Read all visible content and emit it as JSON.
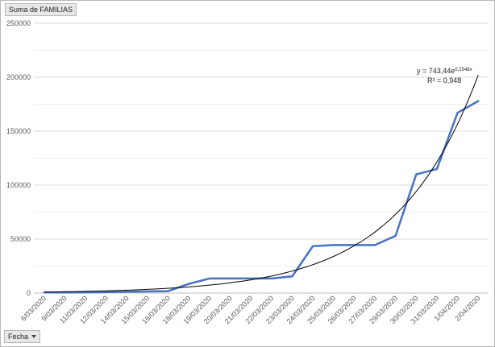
{
  "pivot": {
    "value_field": "Suma de FAMILIAS",
    "axis_field": "Fecha"
  },
  "chart_data": {
    "type": "line",
    "title": "",
    "xlabel": "",
    "ylabel": "",
    "ylim": [
      0,
      250000
    ],
    "y_ticks": [
      "0",
      "50000",
      "100000",
      "150000",
      "200000",
      "250000"
    ],
    "categories": [
      "6/03/2020",
      "9/03/2020",
      "11/03/2020",
      "12/03/2020",
      "14/03/2020",
      "15/03/2020",
      "16/03/2020",
      "18/03/2020",
      "19/03/2020",
      "20/03/2020",
      "21/03/2020",
      "22/03/2020",
      "23/03/2020",
      "24/03/2020",
      "25/03/2020",
      "26/03/2020",
      "27/03/2020",
      "29/03/2020",
      "30/03/2020",
      "31/03/2020",
      "1/04/2020",
      "2/04/2020"
    ],
    "series": [
      {
        "values": [
          500,
          600,
          700,
          900,
          1200,
          1500,
          1800,
          8500,
          13500,
          13500,
          13500,
          13500,
          15500,
          43500,
          44500,
          44500,
          44500,
          53000,
          110000,
          115000,
          167000,
          178000
        ],
        "color": "#4472c4"
      }
    ],
    "trendline": {
      "type": "exponential",
      "coefficient": 743.44,
      "rate": 0.2548,
      "color": "#000000",
      "equation_prefix": "y = 743,44e",
      "equation_exponent": "0,2548x",
      "r_squared_label": "R² = 0,948"
    },
    "grid": true,
    "legend": "none"
  }
}
